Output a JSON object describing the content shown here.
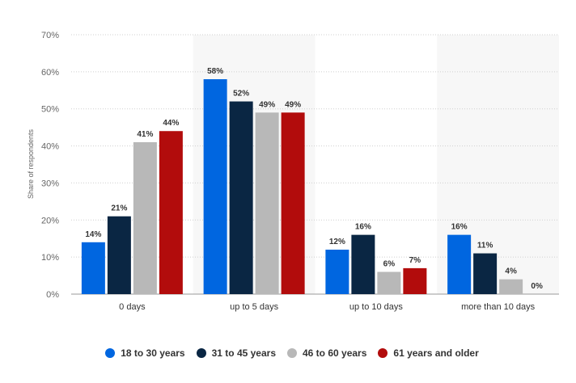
{
  "chart_data": {
    "type": "bar",
    "ylabel": "Share of respondents",
    "ylim": [
      0,
      70
    ],
    "yticks": [
      "0%",
      "10%",
      "20%",
      "30%",
      "40%",
      "50%",
      "60%",
      "70%"
    ],
    "ytick_values": [
      0,
      10,
      20,
      30,
      40,
      50,
      60,
      70
    ],
    "grid": true,
    "legend_position": "bottom",
    "categories": [
      "0 days",
      "up to 5 days",
      "up to 10 days",
      "more than 10 days"
    ],
    "series": [
      {
        "name": "18 to 30 years",
        "color": "#0066e0",
        "values": [
          14,
          58,
          12,
          16
        ],
        "labels": [
          "14%",
          "58%",
          "12%",
          "16%"
        ]
      },
      {
        "name": "31 to 45 years",
        "color": "#0a2643",
        "values": [
          21,
          52,
          16,
          11
        ],
        "labels": [
          "21%",
          "52%",
          "16%",
          "11%"
        ]
      },
      {
        "name": "46 to 60 years",
        "color": "#b8b8b8",
        "values": [
          41,
          49,
          6,
          4
        ],
        "labels": [
          "41%",
          "49%",
          "6%",
          "4%"
        ]
      },
      {
        "name": "61 years and older",
        "color": "#b20c0c",
        "values": [
          44,
          49,
          7,
          0
        ],
        "labels": [
          "44%",
          "49%",
          "7%",
          "0%"
        ]
      }
    ]
  },
  "legend": {
    "items": [
      {
        "label": "18 to 30 years",
        "color": "#0066e0"
      },
      {
        "label": "31 to 45 years",
        "color": "#0a2643"
      },
      {
        "label": "46 to 60 years",
        "color": "#b8b8b8"
      },
      {
        "label": "61 years and older",
        "color": "#b20c0c"
      }
    ]
  }
}
